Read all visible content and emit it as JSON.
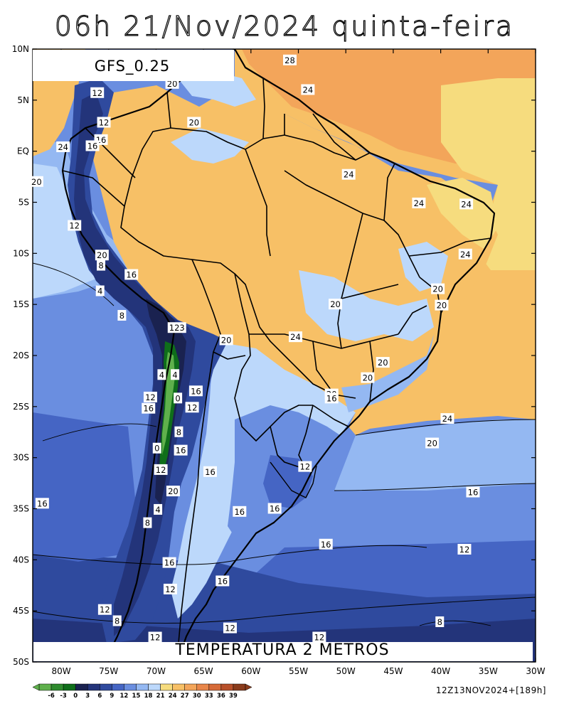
{
  "title": "06h 21/Nov/2024 quinta-feira",
  "model_label": "GFS_0.25",
  "bottom_label": "TEMPERATURA 2 METROS",
  "run_stamp": "12Z13NOV2024+[189h]",
  "lat_labels": [
    "10N",
    "5N",
    "EQ",
    "5S",
    "10S",
    "15S",
    "20S",
    "25S",
    "30S",
    "35S",
    "40S",
    "45S",
    "50S"
  ],
  "lon_labels": [
    "80W",
    "75W",
    "70W",
    "65W",
    "60W",
    "55W",
    "50W",
    "45W",
    "40W",
    "35W",
    "30W"
  ],
  "colorbar": {
    "ticks": [
      "-6",
      "-3",
      "0",
      "3",
      "6",
      "9",
      "12",
      "15",
      "18",
      "21",
      "24",
      "27",
      "30",
      "33",
      "36",
      "39"
    ],
    "colors": [
      "#5fb04c",
      "#2e8b2e",
      "#0f6e1a",
      "#1a2250",
      "#23347a",
      "#2f4a9e",
      "#4565c4",
      "#6a8ee0",
      "#94b8f2",
      "#bcd8fb",
      "#f6dc7e",
      "#f7c066",
      "#f3a55a",
      "#e8864a",
      "#d66a38",
      "#b8502a",
      "#8a3b1c"
    ]
  },
  "contour_labels": [
    {
      "text": "28",
      "lon": -55.9,
      "lat": 8.9
    },
    {
      "text": "24",
      "lon": -54.0,
      "lat": 6.0
    },
    {
      "text": "20",
      "lon": -68.3,
      "lat": 6.6
    },
    {
      "text": "20",
      "lon": -66.0,
      "lat": 2.8
    },
    {
      "text": "12",
      "lon": -76.2,
      "lat": 5.7
    },
    {
      "text": "12",
      "lon": -75.5,
      "lat": 2.8
    },
    {
      "text": "16",
      "lon": -75.8,
      "lat": 1.1
    },
    {
      "text": "16",
      "lon": -76.7,
      "lat": 0.5
    },
    {
      "text": "24",
      "lon": -79.8,
      "lat": 0.4
    },
    {
      "text": "20",
      "lon": -82.6,
      "lat": -3.0
    },
    {
      "text": "12",
      "lon": -78.6,
      "lat": -7.3
    },
    {
      "text": "24",
      "lon": -49.7,
      "lat": -2.3
    },
    {
      "text": "24",
      "lon": -42.3,
      "lat": -5.1
    },
    {
      "text": "24",
      "lon": -37.3,
      "lat": -5.2
    },
    {
      "text": "24",
      "lon": -37.4,
      "lat": -10.1
    },
    {
      "text": "20",
      "lon": -75.7,
      "lat": -10.2
    },
    {
      "text": "8",
      "lon": -75.8,
      "lat": -11.2
    },
    {
      "text": "16",
      "lon": -72.6,
      "lat": -12.1
    },
    {
      "text": "4",
      "lon": -75.9,
      "lat": -13.7
    },
    {
      "text": "20",
      "lon": -40.3,
      "lat": -13.5
    },
    {
      "text": "20",
      "lon": -39.9,
      "lat": -15.1
    },
    {
      "text": "8",
      "lon": -73.6,
      "lat": -16.1
    },
    {
      "text": "20",
      "lon": -51.1,
      "lat": -15.0
    },
    {
      "text": "123",
      "lon": -67.8,
      "lat": -17.3
    },
    {
      "text": "20",
      "lon": -62.6,
      "lat": -18.5
    },
    {
      "text": "24",
      "lon": -55.3,
      "lat": -18.2
    },
    {
      "text": "20",
      "lon": -46.1,
      "lat": -20.7
    },
    {
      "text": "20",
      "lon": -47.7,
      "lat": -22.2
    },
    {
      "text": "4",
      "lon": -69.4,
      "lat": -21.9
    },
    {
      "text": "4",
      "lon": -68.0,
      "lat": -21.9
    },
    {
      "text": "16",
      "lon": -65.8,
      "lat": -23.5
    },
    {
      "text": "12",
      "lon": -70.6,
      "lat": -24.1
    },
    {
      "text": "0",
      "lon": -67.7,
      "lat": -24.2
    },
    {
      "text": "16",
      "lon": -70.8,
      "lat": -25.2
    },
    {
      "text": "12",
      "lon": -66.2,
      "lat": -25.1
    },
    {
      "text": "20",
      "lon": -51.5,
      "lat": -23.8
    },
    {
      "text": "16",
      "lon": -51.5,
      "lat": -24.2
    },
    {
      "text": "8",
      "lon": -67.6,
      "lat": -27.5
    },
    {
      "text": "24",
      "lon": -39.3,
      "lat": -26.2
    },
    {
      "text": "0",
      "lon": -69.9,
      "lat": -29.1
    },
    {
      "text": "16",
      "lon": -67.4,
      "lat": -29.3
    },
    {
      "text": "20",
      "lon": -40.9,
      "lat": -28.6
    },
    {
      "text": "12",
      "lon": -69.5,
      "lat": -31.2
    },
    {
      "text": "16",
      "lon": -64.3,
      "lat": -31.4
    },
    {
      "text": "12",
      "lon": -54.3,
      "lat": -30.9
    },
    {
      "text": "20",
      "lon": -68.2,
      "lat": -33.3
    },
    {
      "text": "16",
      "lon": -36.6,
      "lat": -33.4
    },
    {
      "text": "16",
      "lon": -82.0,
      "lat": -34.5
    },
    {
      "text": "4",
      "lon": -69.8,
      "lat": -35.1
    },
    {
      "text": "16",
      "lon": -57.5,
      "lat": -35.0
    },
    {
      "text": "16",
      "lon": -61.2,
      "lat": -35.3
    },
    {
      "text": "8",
      "lon": -70.9,
      "lat": -36.4
    },
    {
      "text": "16",
      "lon": -52.1,
      "lat": -38.5
    },
    {
      "text": "12",
      "lon": -37.5,
      "lat": -39.0
    },
    {
      "text": "16",
      "lon": -68.6,
      "lat": -40.3
    },
    {
      "text": "16",
      "lon": -63.0,
      "lat": -42.1
    },
    {
      "text": "12",
      "lon": -68.5,
      "lat": -42.9
    },
    {
      "text": "12",
      "lon": -75.4,
      "lat": -44.9
    },
    {
      "text": "8",
      "lon": -74.1,
      "lat": -46.0
    },
    {
      "text": "8",
      "lon": -40.1,
      "lat": -46.1
    },
    {
      "text": "12",
      "lon": -62.2,
      "lat": -46.7
    },
    {
      "text": "12",
      "lon": -70.1,
      "lat": -47.6
    },
    {
      "text": "12",
      "lon": -52.8,
      "lat": -47.6
    }
  ]
}
